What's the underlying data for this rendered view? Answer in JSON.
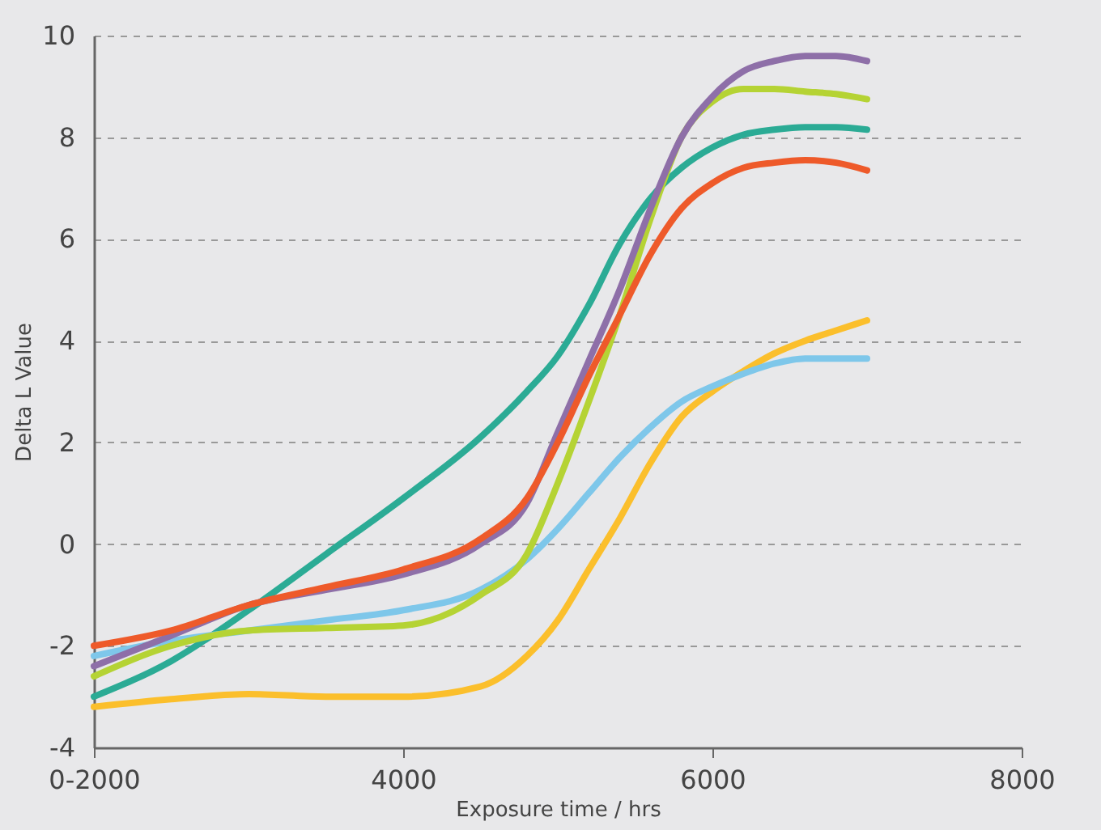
{
  "chart_data": {
    "type": "line",
    "xlabel": "Exposure time / hrs",
    "ylabel": "Delta L Value",
    "x": [
      2000,
      2500,
      3000,
      3500,
      4000,
      4500,
      4800,
      5000,
      5200,
      5400,
      5600,
      5800,
      6000,
      6200,
      6400,
      6600,
      6800,
      7000
    ],
    "series": [
      {
        "color": "#2bab95",
        "values": [
          -3.0,
          -2.3,
          -1.3,
          -0.2,
          0.9,
          2.1,
          3.0,
          3.7,
          4.7,
          5.9,
          6.8,
          7.4,
          7.8,
          8.05,
          8.15,
          8.2,
          8.2,
          8.15
        ]
      },
      {
        "color": "#fbbf2c",
        "values": [
          -3.2,
          -3.05,
          -2.95,
          -3.0,
          -3.0,
          -2.8,
          -2.2,
          -1.5,
          -0.5,
          0.5,
          1.6,
          2.5,
          3.0,
          3.4,
          3.75,
          4.0,
          4.2,
          4.4
        ]
      },
      {
        "color": "#7ec7ea",
        "values": [
          -2.2,
          -1.9,
          -1.7,
          -1.5,
          -1.3,
          -0.9,
          -0.3,
          0.3,
          1.0,
          1.7,
          2.3,
          2.8,
          3.1,
          3.35,
          3.55,
          3.65,
          3.65,
          3.65
        ]
      },
      {
        "color": "#b5d334",
        "values": [
          -2.6,
          -2.0,
          -1.7,
          -1.65,
          -1.6,
          -1.0,
          -0.2,
          1.2,
          2.8,
          4.5,
          6.4,
          8.0,
          8.7,
          8.95,
          8.95,
          8.9,
          8.85,
          8.75
        ]
      },
      {
        "color": "#8e6fa8",
        "values": [
          -2.4,
          -1.8,
          -1.2,
          -0.9,
          -0.6,
          0.0,
          0.8,
          2.2,
          3.6,
          5.0,
          6.6,
          8.0,
          8.8,
          9.3,
          9.5,
          9.6,
          9.6,
          9.5
        ]
      },
      {
        "color": "#ee5a2a",
        "values": [
          -2.0,
          -1.7,
          -1.2,
          -0.85,
          -0.5,
          0.1,
          0.9,
          2.0,
          3.3,
          4.5,
          5.7,
          6.6,
          7.1,
          7.4,
          7.5,
          7.55,
          7.5,
          7.35
        ]
      }
    ],
    "xlim": [
      2000,
      8000
    ],
    "xticks": [
      {
        "value": 2000,
        "label": "0-2000"
      },
      4000,
      6000,
      8000
    ],
    "ylim": [
      -4,
      10
    ],
    "yticks": [
      -4,
      -2,
      0,
      2,
      4,
      6,
      8,
      10
    ],
    "grid": "y",
    "line_style": "solid"
  }
}
